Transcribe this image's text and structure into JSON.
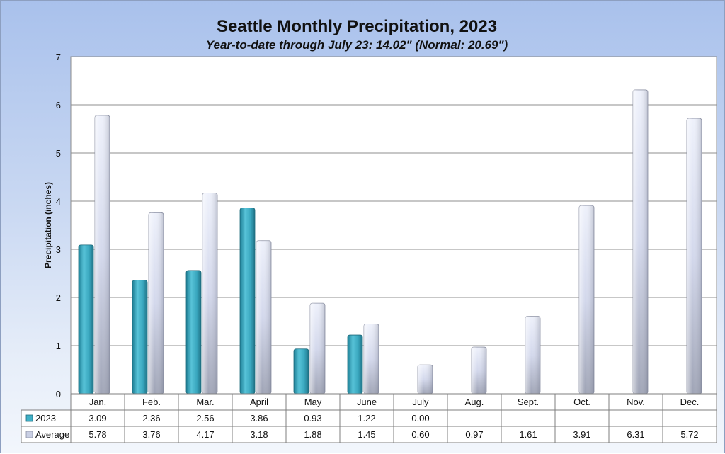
{
  "chart_data": {
    "type": "bar",
    "title": "Seattle Monthly Precipitation, 2023",
    "subtitle": "Year-to-date through July 23: 14.02\" (Normal: 20.69\")",
    "ylabel": "Precipitation (inches)",
    "ylim": [
      0,
      7
    ],
    "yticks": [
      0,
      1,
      2,
      3,
      4,
      5,
      6,
      7
    ],
    "grid": true,
    "legend": "data-table",
    "categories": [
      "Jan.",
      "Feb.",
      "Mar.",
      "April",
      "May",
      "June",
      "July",
      "Aug.",
      "Sept.",
      "Oct.",
      "Nov.",
      "Dec."
    ],
    "series": [
      {
        "name": "2023",
        "color": "#3fb0c6",
        "values": [
          3.09,
          2.36,
          2.56,
          3.86,
          0.93,
          1.22,
          0.0,
          null,
          null,
          null,
          null,
          null
        ],
        "labels": [
          "3.09",
          "2.36",
          "2.56",
          "3.86",
          "0.93",
          "1.22",
          "0.00",
          "",
          "",
          "",
          "",
          ""
        ]
      },
      {
        "name": "Average",
        "color": "#c9cfe4",
        "values": [
          5.78,
          3.76,
          4.17,
          3.18,
          1.88,
          1.45,
          0.6,
          0.97,
          1.61,
          3.91,
          6.31,
          5.72
        ],
        "labels": [
          "5.78",
          "3.76",
          "4.17",
          "3.18",
          "1.88",
          "1.45",
          "0.60",
          "0.97",
          "1.61",
          "3.91",
          "6.31",
          "5.72"
        ]
      }
    ]
  }
}
